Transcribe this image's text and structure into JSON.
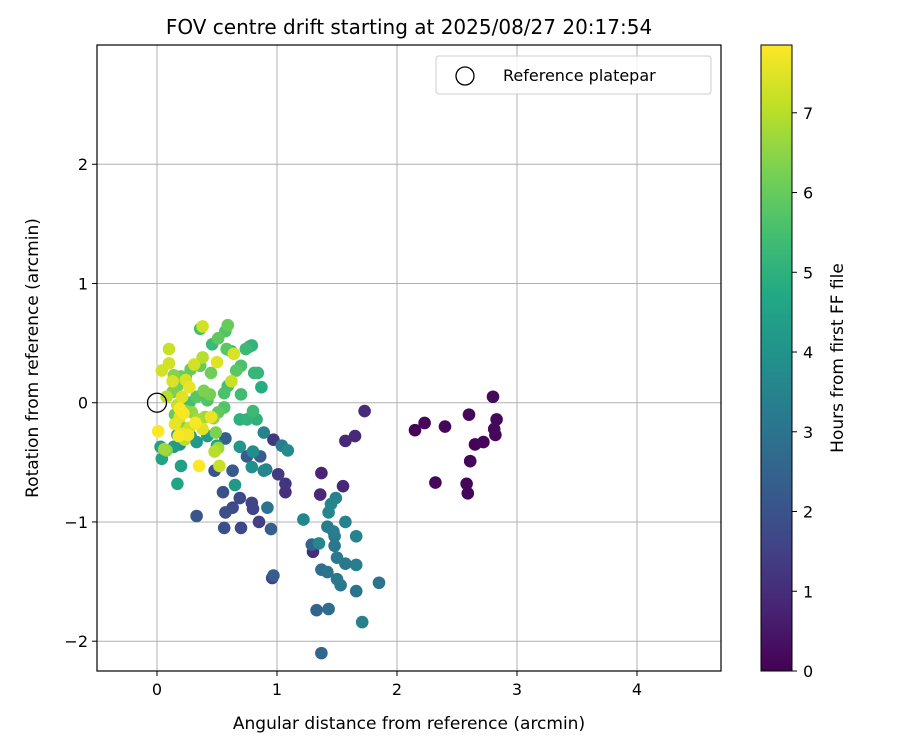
{
  "chart_data": {
    "type": "scatter",
    "title": "FOV centre drift starting at 2025/08/27 20:17:54",
    "xlabel": "Angular distance from reference (arcmin)",
    "ylabel": "Rotation from reference (arcmin)",
    "xlim": [
      -0.5,
      4.7
    ],
    "ylim": [
      -2.25,
      3.0
    ],
    "xticks": [
      0,
      1,
      2,
      3,
      4
    ],
    "yticks": [
      -2,
      -1,
      0,
      1,
      2
    ],
    "xtick_labels": [
      "0",
      "1",
      "2",
      "3",
      "4"
    ],
    "ytick_labels": [
      "−2",
      "−1",
      "0",
      "1",
      "2"
    ],
    "grid": true,
    "legend": {
      "position": "upper-right",
      "entries": [
        {
          "label": "Reference platepar",
          "marker": "open-circle"
        }
      ]
    },
    "reference_point": {
      "x": 0.0,
      "y": 0.0
    },
    "colorbar": {
      "label": "Hours from first FF file",
      "colormap": "viridis",
      "range": [
        0,
        7.85
      ],
      "ticks": [
        0,
        1,
        2,
        3,
        4,
        5,
        6,
        7
      ],
      "tick_labels": [
        "0",
        "1",
        "2",
        "3",
        "4",
        "5",
        "6",
        "7"
      ]
    },
    "points": [
      {
        "x": 2.15,
        "y": -0.23,
        "c": 0.05
      },
      {
        "x": 2.23,
        "y": -0.17,
        "c": 0.1
      },
      {
        "x": 2.4,
        "y": -0.2,
        "c": 0.12
      },
      {
        "x": 2.32,
        "y": -0.67,
        "c": 0.15
      },
      {
        "x": 2.58,
        "y": -0.68,
        "c": 0.08
      },
      {
        "x": 2.59,
        "y": -0.76,
        "c": 0.1
      },
      {
        "x": 2.61,
        "y": -0.49,
        "c": 0.12
      },
      {
        "x": 2.6,
        "y": -0.1,
        "c": 0.15
      },
      {
        "x": 2.65,
        "y": -0.35,
        "c": 0.05
      },
      {
        "x": 2.72,
        "y": -0.33,
        "c": 0.1
      },
      {
        "x": 2.8,
        "y": 0.05,
        "c": 0.2
      },
      {
        "x": 2.81,
        "y": -0.22,
        "c": 0.18
      },
      {
        "x": 2.82,
        "y": -0.27,
        "c": 0.12
      },
      {
        "x": 2.83,
        "y": -0.14,
        "c": 0.15
      },
      {
        "x": 1.73,
        "y": -0.07,
        "c": 0.95
      },
      {
        "x": 1.65,
        "y": -0.28,
        "c": 0.9
      },
      {
        "x": 1.57,
        "y": -0.32,
        "c": 0.9
      },
      {
        "x": 1.55,
        "y": -0.7,
        "c": 0.85
      },
      {
        "x": 1.37,
        "y": -0.59,
        "c": 0.8
      },
      {
        "x": 1.36,
        "y": -0.77,
        "c": 0.9
      },
      {
        "x": 1.3,
        "y": -1.25,
        "c": 1.0
      },
      {
        "x": 1.07,
        "y": -0.75,
        "c": 1.05
      },
      {
        "x": 1.07,
        "y": -0.68,
        "c": 1.2
      },
      {
        "x": 1.01,
        "y": -0.6,
        "c": 1.35
      },
      {
        "x": 0.96,
        "y": -1.47,
        "c": 1.5
      },
      {
        "x": 0.97,
        "y": -0.31,
        "c": 1.3
      },
      {
        "x": 0.79,
        "y": -0.84,
        "c": 1.55
      },
      {
        "x": 0.8,
        "y": -0.89,
        "c": 1.6
      },
      {
        "x": 0.85,
        "y": -1.0,
        "c": 1.45
      },
      {
        "x": 0.7,
        "y": -1.05,
        "c": 1.7
      },
      {
        "x": 0.69,
        "y": -0.8,
        "c": 1.75
      },
      {
        "x": 0.63,
        "y": -0.88,
        "c": 1.8
      },
      {
        "x": 0.57,
        "y": -0.92,
        "c": 1.85
      },
      {
        "x": 0.56,
        "y": -1.05,
        "c": 1.9
      },
      {
        "x": 0.55,
        "y": -0.75,
        "c": 1.95
      },
      {
        "x": 0.48,
        "y": -0.57,
        "c": 2.0
      },
      {
        "x": 0.33,
        "y": -0.95,
        "c": 2.1
      },
      {
        "x": 0.63,
        "y": -0.57,
        "c": 2.2
      },
      {
        "x": 0.75,
        "y": -0.45,
        "c": 2.25
      },
      {
        "x": 0.86,
        "y": -0.45,
        "c": 2.3
      },
      {
        "x": 0.57,
        "y": -0.3,
        "c": 2.4
      },
      {
        "x": 0.97,
        "y": -1.45,
        "c": 2.3
      },
      {
        "x": 0.95,
        "y": -1.06,
        "c": 2.4
      },
      {
        "x": 1.29,
        "y": -1.19,
        "c": 2.5
      },
      {
        "x": 1.33,
        "y": -1.74,
        "c": 2.55
      },
      {
        "x": 1.37,
        "y": -2.1,
        "c": 2.6
      },
      {
        "x": 1.43,
        "y": -1.73,
        "c": 2.8
      },
      {
        "x": 1.37,
        "y": -1.4,
        "c": 2.9
      },
      {
        "x": 1.42,
        "y": -1.42,
        "c": 3.0
      },
      {
        "x": 1.5,
        "y": -1.48,
        "c": 3.1
      },
      {
        "x": 1.53,
        "y": -1.53,
        "c": 3.2
      },
      {
        "x": 1.57,
        "y": -1.35,
        "c": 3.1
      },
      {
        "x": 1.5,
        "y": -1.3,
        "c": 3.2
      },
      {
        "x": 1.42,
        "y": -1.04,
        "c": 3.25
      },
      {
        "x": 1.47,
        "y": -1.08,
        "c": 3.3
      },
      {
        "x": 1.48,
        "y": -1.12,
        "c": 3.2
      },
      {
        "x": 1.48,
        "y": -1.2,
        "c": 3.1
      },
      {
        "x": 1.66,
        "y": -1.36,
        "c": 3.3
      },
      {
        "x": 1.66,
        "y": -1.58,
        "c": 3.0
      },
      {
        "x": 1.71,
        "y": -1.84,
        "c": 3.4
      },
      {
        "x": 1.85,
        "y": -1.51,
        "c": 3.0
      },
      {
        "x": 1.57,
        "y": -1.0,
        "c": 3.5
      },
      {
        "x": 1.66,
        "y": -1.12,
        "c": 3.5
      },
      {
        "x": 1.49,
        "y": -0.8,
        "c": 3.5
      },
      {
        "x": 1.45,
        "y": -0.85,
        "c": 3.6
      },
      {
        "x": 1.43,
        "y": -0.92,
        "c": 3.6
      },
      {
        "x": 1.22,
        "y": -0.98,
        "c": 3.55
      },
      {
        "x": 1.35,
        "y": -1.18,
        "c": 3.6
      },
      {
        "x": 0.92,
        "y": -0.88,
        "c": 3.0
      },
      {
        "x": 0.91,
        "y": -0.56,
        "c": 3.4
      },
      {
        "x": 0.89,
        "y": -0.57,
        "c": 3.6
      },
      {
        "x": 1.04,
        "y": -0.36,
        "c": 3.3
      },
      {
        "x": 1.09,
        "y": -0.4,
        "c": 3.7
      },
      {
        "x": 0.89,
        "y": -0.25,
        "c": 3.5
      },
      {
        "x": 0.8,
        "y": -0.41,
        "c": 3.8
      },
      {
        "x": 0.79,
        "y": -0.54,
        "c": 3.9
      },
      {
        "x": 0.69,
        "y": -0.37,
        "c": 4.1
      },
      {
        "x": 0.65,
        "y": -0.69,
        "c": 4.2
      },
      {
        "x": 0.42,
        "y": -0.28,
        "c": 4.3
      },
      {
        "x": 0.5,
        "y": -0.36,
        "c": 4.4
      },
      {
        "x": 0.33,
        "y": -0.33,
        "c": 4.2
      },
      {
        "x": 0.28,
        "y": -0.28,
        "c": 4.0
      },
      {
        "x": 0.19,
        "y": -0.35,
        "c": 3.9
      },
      {
        "x": 0.17,
        "y": -0.27,
        "c": 4.1
      },
      {
        "x": 0.14,
        "y": -0.37,
        "c": 4.3
      },
      {
        "x": 0.03,
        "y": -0.37,
        "c": 4.4
      },
      {
        "x": 0.04,
        "y": -0.47,
        "c": 4.5
      },
      {
        "x": 0.2,
        "y": -0.53,
        "c": 4.4
      },
      {
        "x": 0.17,
        "y": -0.68,
        "c": 4.6
      },
      {
        "x": 0.87,
        "y": 0.13,
        "c": 4.8
      },
      {
        "x": 0.83,
        "y": -0.14,
        "c": 5.0
      },
      {
        "x": 0.69,
        "y": -0.14,
        "c": 5.0
      },
      {
        "x": 0.75,
        "y": -0.14,
        "c": 5.1
      },
      {
        "x": 0.8,
        "y": -0.07,
        "c": 5.3
      },
      {
        "x": 0.81,
        "y": 0.25,
        "c": 5.2
      },
      {
        "x": 0.77,
        "y": 0.47,
        "c": 5.0
      },
      {
        "x": 0.79,
        "y": 0.48,
        "c": 5.1
      },
      {
        "x": 0.74,
        "y": 0.45,
        "c": 5.3
      },
      {
        "x": 0.84,
        "y": 0.25,
        "c": 5.2
      },
      {
        "x": 0.62,
        "y": 0.43,
        "c": 5.2
      },
      {
        "x": 0.46,
        "y": 0.49,
        "c": 5.3
      },
      {
        "x": 0.36,
        "y": 0.62,
        "c": 5.5
      },
      {
        "x": 0.58,
        "y": 0.45,
        "c": 5.8
      },
      {
        "x": 0.57,
        "y": 0.6,
        "c": 5.7
      },
      {
        "x": 0.51,
        "y": 0.54,
        "c": 5.9
      },
      {
        "x": 0.59,
        "y": 0.65,
        "c": 6.0
      },
      {
        "x": 0.7,
        "y": 0.31,
        "c": 5.6
      },
      {
        "x": 0.66,
        "y": 0.27,
        "c": 5.8
      },
      {
        "x": 0.59,
        "y": 0.14,
        "c": 5.5
      },
      {
        "x": 0.56,
        "y": 0.08,
        "c": 5.6
      },
      {
        "x": 0.7,
        "y": 0.07,
        "c": 5.4
      },
      {
        "x": 0.56,
        "y": -0.04,
        "c": 5.7
      },
      {
        "x": 0.51,
        "y": -0.08,
        "c": 5.9
      },
      {
        "x": 0.42,
        "y": 0.02,
        "c": 5.7
      },
      {
        "x": 0.33,
        "y": 0.05,
        "c": 5.8
      },
      {
        "x": 0.27,
        "y": 0.0,
        "c": 5.5
      },
      {
        "x": 0.24,
        "y": 0.21,
        "c": 5.6
      },
      {
        "x": 0.28,
        "y": 0.28,
        "c": 6.0
      },
      {
        "x": 0.36,
        "y": 0.31,
        "c": 6.0
      },
      {
        "x": 0.45,
        "y": 0.25,
        "c": 6.1
      },
      {
        "x": 0.44,
        "y": 0.07,
        "c": 6.2
      },
      {
        "x": 0.39,
        "y": 0.1,
        "c": 6.3
      },
      {
        "x": 0.2,
        "y": 0.22,
        "c": 6.1
      },
      {
        "x": 0.17,
        "y": 0.14,
        "c": 6.2
      },
      {
        "x": 0.14,
        "y": 0.23,
        "c": 6.4
      },
      {
        "x": 0.13,
        "y": 0.09,
        "c": 6.3
      },
      {
        "x": 0.15,
        "y": -0.1,
        "c": 6.0
      },
      {
        "x": 0.2,
        "y": -0.2,
        "c": 6.4
      },
      {
        "x": 0.24,
        "y": -0.07,
        "c": 6.5
      },
      {
        "x": 0.29,
        "y": -0.08,
        "c": 6.6
      },
      {
        "x": 0.34,
        "y": -0.14,
        "c": 6.8
      },
      {
        "x": 0.4,
        "y": -0.12,
        "c": 6.7
      },
      {
        "x": 0.47,
        "y": -0.13,
        "c": 6.5
      },
      {
        "x": 0.49,
        "y": -0.25,
        "c": 6.3
      },
      {
        "x": 0.51,
        "y": -0.38,
        "c": 6.7
      },
      {
        "x": 0.48,
        "y": -0.41,
        "c": 7.0
      },
      {
        "x": 0.52,
        "y": -0.53,
        "c": 7.2
      },
      {
        "x": 0.08,
        "y": -0.4,
        "c": 6.4
      },
      {
        "x": 0.06,
        "y": -0.39,
        "c": 6.7
      },
      {
        "x": 0.38,
        "y": 0.64,
        "c": 7.3
      },
      {
        "x": 0.62,
        "y": 0.18,
        "c": 7.2
      },
      {
        "x": 0.64,
        "y": 0.41,
        "c": 7.4
      },
      {
        "x": 0.5,
        "y": 0.34,
        "c": 7.5
      },
      {
        "x": 0.38,
        "y": 0.38,
        "c": 7.0
      },
      {
        "x": 0.31,
        "y": 0.32,
        "c": 7.3
      },
      {
        "x": 0.24,
        "y": 0.19,
        "c": 7.4
      },
      {
        "x": 0.1,
        "y": 0.45,
        "c": 7.2
      },
      {
        "x": 0.1,
        "y": 0.33,
        "c": 7.3
      },
      {
        "x": 0.13,
        "y": 0.18,
        "c": 7.4
      },
      {
        "x": 0.04,
        "y": 0.27,
        "c": 7.3
      },
      {
        "x": 0.08,
        "y": 0.05,
        "c": 7.0
      },
      {
        "x": 0.17,
        "y": -0.02,
        "c": 7.1
      },
      {
        "x": 0.21,
        "y": 0.05,
        "c": 7.5
      },
      {
        "x": 0.27,
        "y": 0.13,
        "c": 7.6
      },
      {
        "x": 0.19,
        "y": -0.12,
        "c": 7.5
      },
      {
        "x": 0.21,
        "y": -0.26,
        "c": 7.6
      },
      {
        "x": 0.27,
        "y": -0.21,
        "c": 7.2
      },
      {
        "x": 0.23,
        "y": -0.31,
        "c": 7.0
      },
      {
        "x": 0.38,
        "y": -0.22,
        "c": 7.5
      },
      {
        "x": 0.45,
        "y": -0.12,
        "c": 7.6
      },
      {
        "x": 0.32,
        "y": -0.17,
        "c": 7.8
      },
      {
        "x": 0.35,
        "y": -0.53,
        "c": 7.85
      },
      {
        "x": 0.01,
        "y": -0.24,
        "c": 7.85
      },
      {
        "x": 0.18,
        "y": -0.28,
        "c": 7.8
      },
      {
        "x": 0.26,
        "y": -0.27,
        "c": 7.7
      },
      {
        "x": 0.15,
        "y": -0.18,
        "c": 7.6
      },
      {
        "x": 0.19,
        "y": -0.05,
        "c": 7.85
      },
      {
        "x": 0.22,
        "y": -0.09,
        "c": 7.8
      }
    ]
  }
}
